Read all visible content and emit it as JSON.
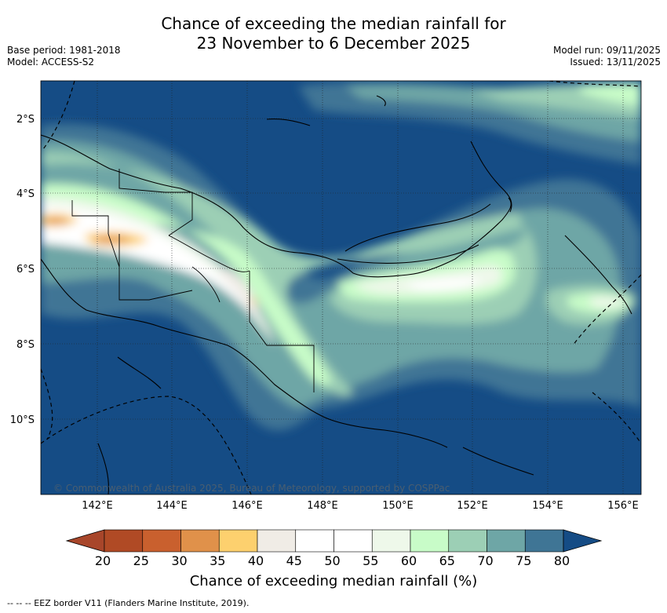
{
  "title": {
    "line1": "Chance of exceeding the median rainfall for",
    "line2": "23 November to 6 December 2025"
  },
  "meta": {
    "base_period": "Base period: 1981-2018",
    "model": "Model: ACCESS-S2",
    "model_run": "Model run: 09/11/2025",
    "issued": "Issued: 13/11/2025"
  },
  "map": {
    "lat_labels": [
      "2°S",
      "4°S",
      "6°S",
      "8°S",
      "10°S"
    ],
    "lon_labels": [
      "142°E",
      "144°E",
      "146°E",
      "148°E",
      "150°E",
      "152°E",
      "154°E",
      "156°E"
    ],
    "copyright": "© Commonwealth of Australia 2025, Bureau of Meteorology, supported by COSPPac"
  },
  "colorbar": {
    "ticks": [
      "20",
      "25",
      "30",
      "35",
      "40",
      "45",
      "50",
      "55",
      "60",
      "65",
      "70",
      "75",
      "80"
    ],
    "colors": [
      "#b04a25",
      "#c9602e",
      "#e0914a",
      "#fdd06e",
      "#f0ece6",
      "#ffffff",
      "#ffffff",
      "#eef8ea",
      "#c8fcc8",
      "#9ccfb5",
      "#6ea6a6",
      "#3f7595"
    ],
    "under_color": "#a8462a",
    "over_color": "#154c85",
    "label": "Chance of exceeding median rainfall (%)"
  },
  "footer": "--  --  -- EEZ border V11 (Flanders Marine Institute, 2019)."
}
